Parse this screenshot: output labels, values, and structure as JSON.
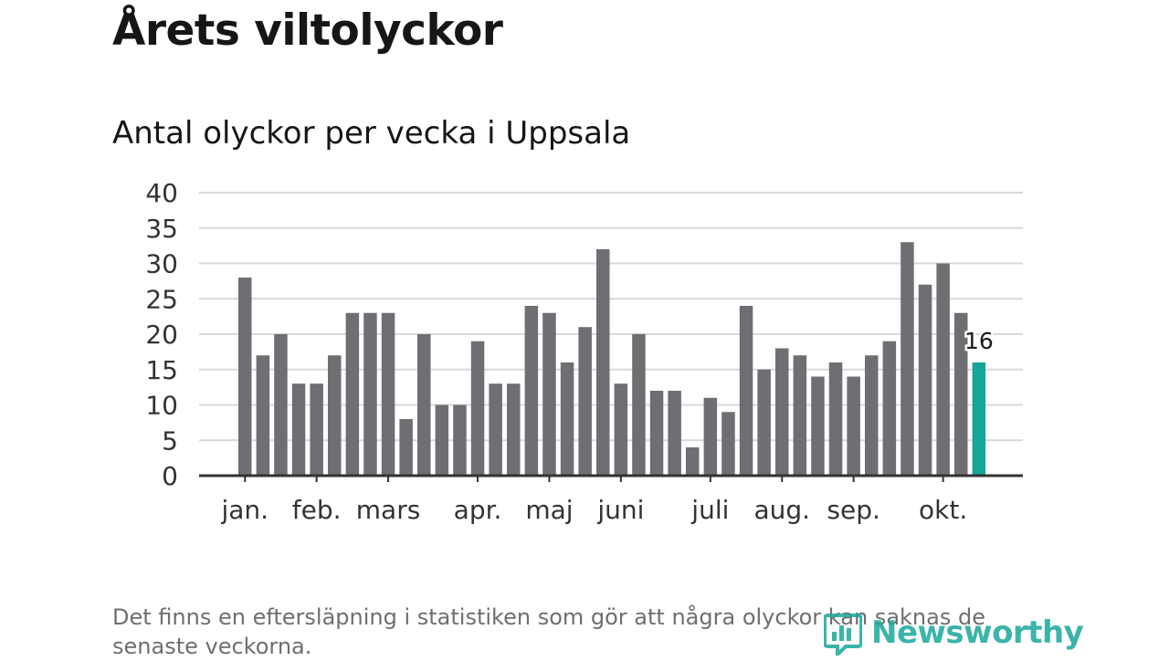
{
  "header": {
    "title": "Årets viltolyckor",
    "subtitle": "Antal olyckor per vecka i Uppsala"
  },
  "footnote": "Det finns en eftersläpning i statistiken som gör att några olyckor kan saknas de senaste veckorna.",
  "brand": {
    "name": "Newsworthy",
    "icon": "newsworthy-logo-icon"
  },
  "colors": {
    "bar": "#6f6e73",
    "highlight": "#17a597",
    "grid": "#d9d9d9",
    "axis": "#333333",
    "brand": "#1aa79b"
  },
  "chart_data": {
    "type": "bar",
    "title": "Antal olyckor per vecka i Uppsala",
    "xlabel": "",
    "ylabel": "",
    "ylim": [
      0,
      40
    ],
    "yticks": [
      0,
      5,
      10,
      15,
      20,
      25,
      30,
      35,
      40
    ],
    "grid": true,
    "values": [
      28,
      17,
      20,
      13,
      13,
      17,
      23,
      23,
      23,
      8,
      20,
      10,
      10,
      19,
      13,
      13,
      24,
      23,
      16,
      21,
      32,
      13,
      20,
      12,
      12,
      4,
      11,
      9,
      24,
      15,
      18,
      17,
      14,
      16,
      14,
      17,
      19,
      33,
      27,
      30,
      23,
      16
    ],
    "highlight_index": 41,
    "highlight_label": "16",
    "month_labels": [
      {
        "label": "jan.",
        "bar_index": 0
      },
      {
        "label": "feb.",
        "bar_index": 4
      },
      {
        "label": "mars",
        "bar_index": 8
      },
      {
        "label": "apr.",
        "bar_index": 13
      },
      {
        "label": "maj",
        "bar_index": 17
      },
      {
        "label": "juni",
        "bar_index": 21
      },
      {
        "label": "juli",
        "bar_index": 26
      },
      {
        "label": "aug.",
        "bar_index": 30
      },
      {
        "label": "sep.",
        "bar_index": 34
      },
      {
        "label": "okt.",
        "bar_index": 39
      }
    ]
  }
}
